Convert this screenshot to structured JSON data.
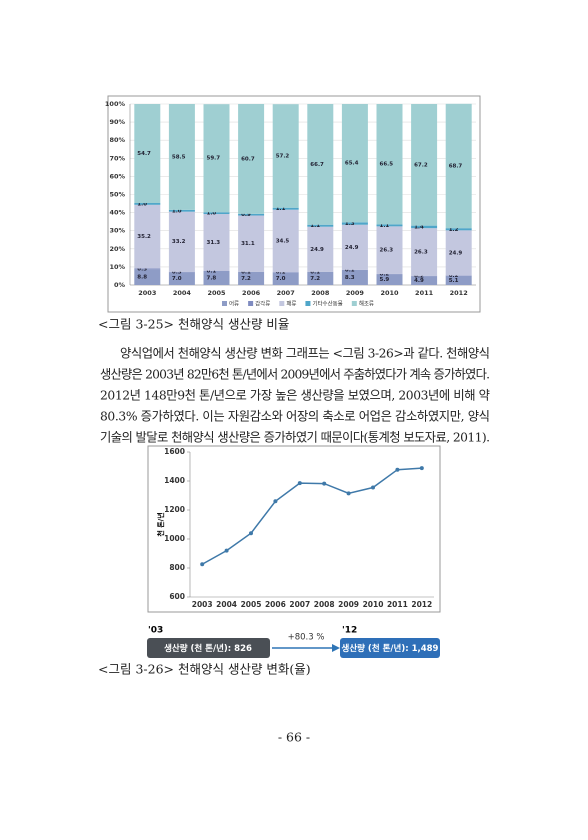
{
  "chart_data": [
    {
      "type": "stacked_bar",
      "categories": [
        "2003",
        "2004",
        "2005",
        "2006",
        "2007",
        "2008",
        "2009",
        "2010",
        "2011",
        "2012"
      ],
      "series": [
        {
          "name": "어류",
          "color": "#8e9cc6",
          "values": [
            8.8,
            7.0,
            7.8,
            7.2,
            7.0,
            7.2,
            8.3,
            5.9,
            4.9,
            5.1
          ],
          "value_labels": [
            "8.8",
            "7.0",
            "7.8",
            "7.2",
            "7.0",
            "7.2",
            "8.3",
            "5.9",
            "4.9",
            "5.1"
          ]
        },
        {
          "name": "갑각류",
          "color": "#7f8bc0",
          "values": [
            0.3,
            0.3,
            0.1,
            0.1,
            0.1,
            0.1,
            0.1,
            0.2,
            0.2,
            0.2
          ],
          "value_labels": [
            "0.3",
            "0.3",
            "0.1",
            "0.1",
            "0.1",
            "0.1",
            "0.1",
            "0.2",
            "0.2",
            "0.2"
          ]
        },
        {
          "name": "패류",
          "color": "#c3c7df",
          "values": [
            35.2,
            33.2,
            31.3,
            31.1,
            34.5,
            24.9,
            24.9,
            26.3,
            26.3,
            24.9
          ],
          "value_labels": [
            "35.2",
            "33.2",
            "31.3",
            "31.1",
            "34.5",
            "24.9",
            "24.9",
            "26.3",
            "26.3",
            "24.9"
          ]
        },
        {
          "name": "기타수산동물",
          "color": "#4fa6c9",
          "values": [
            1.0,
            1.0,
            1.0,
            0.9,
            1.1,
            1.1,
            1.3,
            1.1,
            1.4,
            1.2
          ],
          "value_labels": [
            "1.0",
            "1.0",
            "1.0",
            "0.9",
            "1.1",
            "1.1",
            "1.3",
            "1.1",
            "1.4",
            "1.2"
          ]
        },
        {
          "name": "해조류",
          "color": "#9fcfd2",
          "values": [
            54.7,
            58.5,
            59.7,
            60.7,
            57.2,
            66.7,
            65.4,
            66.5,
            67.2,
            68.7
          ],
          "value_labels": [
            "54.7",
            "58.5",
            "59.7",
            "60.7",
            "57.2",
            "66.7",
            "65.4",
            "66.5",
            "67.2",
            "68.7"
          ]
        }
      ],
      "ylim": [
        0,
        100
      ],
      "yticks": [
        {
          "value": 0,
          "label": "0%"
        },
        {
          "value": 10,
          "label": "10%"
        },
        {
          "value": 20,
          "label": "20%"
        },
        {
          "value": 30,
          "label": "30%"
        },
        {
          "value": 40,
          "label": "40%"
        },
        {
          "value": 50,
          "label": "50%"
        },
        {
          "value": 60,
          "label": "60%"
        },
        {
          "value": 70,
          "label": "70%"
        },
        {
          "value": 80,
          "label": "80%"
        },
        {
          "value": 90,
          "label": "90%"
        },
        {
          "value": 100,
          "label": "100%"
        }
      ],
      "grid": true,
      "legend": "bottom"
    },
    {
      "type": "line",
      "y_label": "천 톤/년",
      "categories": [
        "2003",
        "2004",
        "2005",
        "2006",
        "2007",
        "2008",
        "2009",
        "2010",
        "2011",
        "2012"
      ],
      "series": [
        {
          "color": "#3f79a9",
          "values": [
            826,
            920,
            1040,
            1260,
            1385,
            1382,
            1315,
            1355,
            1478,
            1489
          ]
        }
      ],
      "ylim": [
        600,
        1600
      ],
      "yticks": [
        600,
        800,
        1000,
        1200,
        1400,
        1600
      ],
      "grid": false
    }
  ],
  "captions": [
    "<그림 3-25> 천해양식 생산량 비율",
    "<그림 3-26> 천해양식 생산량 변화(율)"
  ],
  "paragraph": [
    "양식업에서 천해양식 생산량 변화 그래프는 <그림 3-26>과 같다. 천해양식",
    "생산량은 2003년 82만6천 톤/년에서 2009년에서 주춤하였다가 계속 증가하였다.",
    "2012년 148만9천 톤/년으로 가장 높은 생산량을 보였으며, 2003년에 비해 약",
    "80.3% 증가하였다. 이는 자원감소와 어장의 축소로 어업은 감소하였지만, 양식",
    "기술의 발달로 천해양식 생산량은 증가하였기 때문이다(통계청 보도자료, 2011)."
  ],
  "summary": {
    "start_year": "'03",
    "start_box": "생산량 (천 톤/년): 826",
    "change": "+80.3 %",
    "end_year": "'12",
    "end_box": "생산량 (천 톤/년): 1,489"
  },
  "page_number": "- 66 -"
}
